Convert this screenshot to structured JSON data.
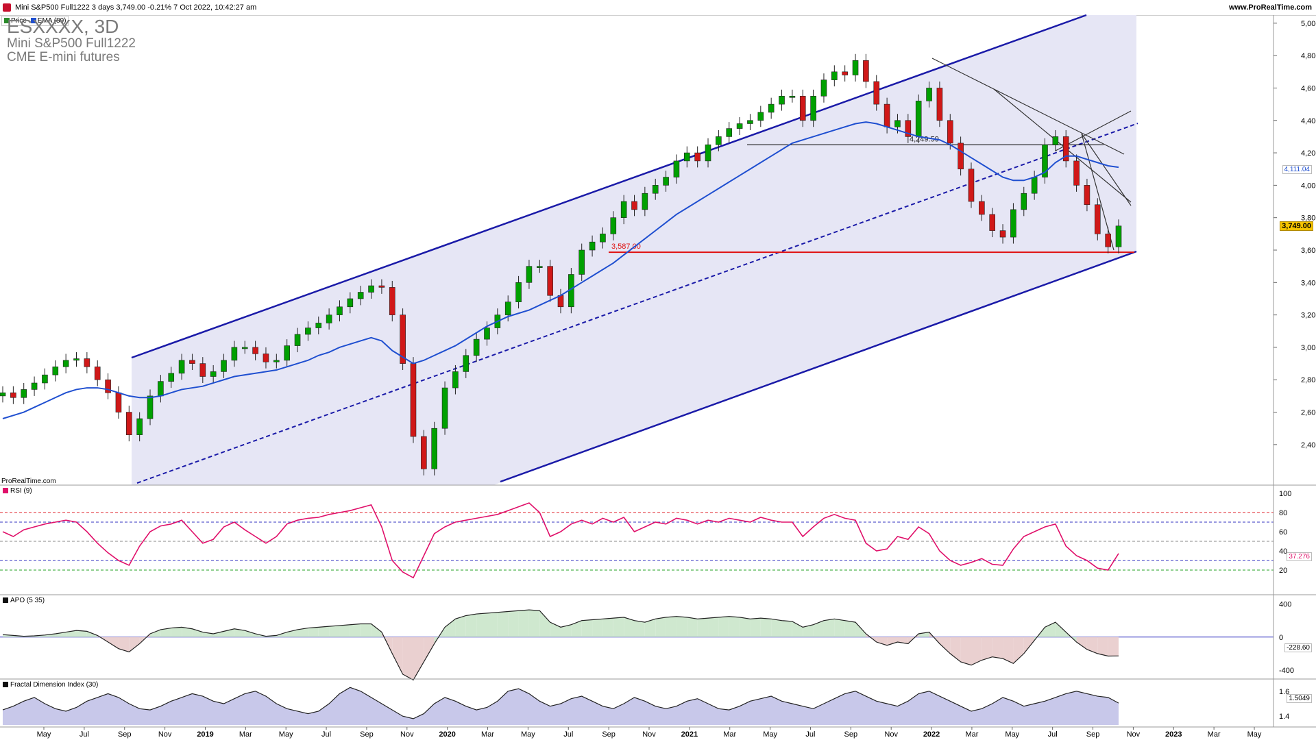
{
  "header": {
    "title": "Mini S&P500 Full1222 3 days 3,749.00 -0.21% 7 Oct 2022, 10:42:27 am",
    "site": "www.ProRealTime.com"
  },
  "legend": {
    "price_label": "Price",
    "ema_label": "EMA (89)"
  },
  "symbol": {
    "code": "ESXXXX, 3D",
    "name": "Mini S&P500 Full1222",
    "exchange": "CME E-mini futures"
  },
  "watermark": "ProRealTime.com",
  "colors": {
    "up": "#00a000",
    "down": "#d01818",
    "ema": "#1f4fd0",
    "channel": "#1a1aa8",
    "channel_fill": "#e6e6f5",
    "support": "#e01010",
    "rsi": "#e0106a",
    "apo_pos": "#cfe8cf",
    "apo_neg": "#ead0d0"
  },
  "chart_data": [
    {
      "type": "line",
      "title": "Mini S&P500 Full1222",
      "y_axis": {
        "range": [
          2150,
          5050
        ],
        "ticks": [
          "2,400",
          "2,600",
          "2,800",
          "3,000",
          "3,200",
          "3,400",
          "3,600",
          "3,800",
          "4,000",
          "4,200",
          "4,400",
          "4,600",
          "4,800",
          "5,000"
        ]
      },
      "x_axis": {
        "ticks": [
          "May",
          "Jul",
          "Sep",
          "Nov",
          "2019",
          "Mar",
          "May",
          "Jul",
          "Sep",
          "Nov",
          "2020",
          "Mar",
          "May",
          "Jul",
          "Sep",
          "Nov",
          "2021",
          "Mar",
          "May",
          "Jul",
          "Sep",
          "Nov",
          "2022",
          "Mar",
          "May",
          "Jul",
          "Sep",
          "Nov",
          "2023",
          "Mar",
          "May"
        ]
      },
      "series": [
        {
          "name": "Price",
          "values": [
            2720,
            2690,
            2740,
            2780,
            2830,
            2880,
            2920,
            2930,
            2880,
            2800,
            2720,
            2600,
            2460,
            2560,
            2700,
            2790,
            2840,
            2920,
            2900,
            2820,
            2850,
            2920,
            3000,
            3000,
            2960,
            2910,
            2920,
            3010,
            3080,
            3120,
            3150,
            3200,
            3250,
            3300,
            3340,
            3380,
            3370,
            3200,
            2900,
            2450,
            2250,
            2500,
            2750,
            2850,
            2950,
            3050,
            3120,
            3200,
            3280,
            3400,
            3500,
            3500,
            3320,
            3250,
            3450,
            3600,
            3650,
            3700,
            3800,
            3900,
            3850,
            3950,
            4000,
            4050,
            4150,
            4200,
            4150,
            4250,
            4300,
            4350,
            4380,
            4400,
            4450,
            4500,
            4550,
            4550,
            4400,
            4550,
            4650,
            4700,
            4680,
            4770,
            4640,
            4500,
            4360,
            4400,
            4300,
            4520,
            4600,
            4400,
            4260,
            4100,
            3900,
            3820,
            3720,
            3680,
            3850,
            3950,
            4050,
            4250,
            4300,
            4150,
            4000,
            3880,
            3700,
            3620,
            3749
          ]
        },
        {
          "name": "EMA (89)",
          "values": [
            2560,
            2580,
            2600,
            2630,
            2660,
            2690,
            2720,
            2740,
            2750,
            2750,
            2740,
            2720,
            2700,
            2690,
            2690,
            2700,
            2720,
            2740,
            2750,
            2760,
            2780,
            2800,
            2820,
            2830,
            2840,
            2850,
            2860,
            2880,
            2900,
            2920,
            2950,
            2970,
            3000,
            3020,
            3040,
            3060,
            3040,
            2980,
            2940,
            2900,
            2920,
            2950,
            2980,
            3010,
            3050,
            3090,
            3130,
            3160,
            3190,
            3210,
            3230,
            3260,
            3290,
            3320,
            3360,
            3400,
            3440,
            3480,
            3520,
            3570,
            3620,
            3670,
            3720,
            3770,
            3820,
            3860,
            3900,
            3940,
            3980,
            4020,
            4060,
            4100,
            4140,
            4180,
            4220,
            4260,
            4280,
            4300,
            4320,
            4340,
            4360,
            4380,
            4390,
            4380,
            4360,
            4340,
            4320,
            4300,
            4290,
            4280,
            4250,
            4210,
            4170,
            4130,
            4090,
            4050,
            4030,
            4030,
            4050,
            4080,
            4140,
            4180,
            4180,
            4160,
            4140,
            4120,
            4111
          ]
        }
      ],
      "annotations": [
        "3,587.00",
        "4,249.59"
      ],
      "last_price": "3,749.00",
      "ema_last": "4,111.04"
    },
    {
      "type": "line",
      "title": "RSI (9)",
      "y_axis": {
        "range": [
          0,
          100
        ],
        "ticks": [
          "20",
          "40",
          "60",
          "80",
          "100"
        ]
      },
      "series": [
        {
          "name": "RSI (9)",
          "values": [
            60,
            55,
            62,
            65,
            68,
            70,
            72,
            70,
            60,
            48,
            38,
            30,
            25,
            45,
            60,
            66,
            68,
            72,
            60,
            48,
            52,
            65,
            70,
            62,
            55,
            48,
            55,
            68,
            72,
            74,
            75,
            78,
            80,
            82,
            85,
            88,
            65,
            30,
            18,
            12,
            35,
            58,
            65,
            70,
            72,
            74,
            76,
            78,
            82,
            86,
            90,
            80,
            55,
            60,
            68,
            72,
            68,
            74,
            70,
            75,
            60,
            65,
            70,
            68,
            74,
            72,
            68,
            72,
            70,
            74,
            72,
            70,
            75,
            72,
            70,
            70,
            55,
            65,
            74,
            78,
            74,
            72,
            48,
            40,
            42,
            55,
            52,
            65,
            58,
            40,
            30,
            25,
            28,
            32,
            26,
            25,
            42,
            55,
            60,
            65,
            68,
            45,
            35,
            30,
            22,
            20,
            37.276
          ]
        }
      ],
      "levels": [
        80,
        70,
        50,
        30,
        20
      ],
      "last_value": "37.276"
    },
    {
      "type": "area",
      "title": "APO (5 35)",
      "y_axis": {
        "range": [
          -500,
          480
        ],
        "ticks": [
          "400",
          "0",
          "-400"
        ]
      },
      "series": [
        {
          "name": "APO (5 35)",
          "values": [
            30,
            20,
            10,
            15,
            25,
            40,
            60,
            80,
            70,
            20,
            -60,
            -140,
            -180,
            -80,
            40,
            90,
            110,
            120,
            100,
            60,
            40,
            70,
            100,
            80,
            40,
            10,
            20,
            60,
            90,
            110,
            120,
            130,
            140,
            150,
            160,
            160,
            60,
            -200,
            -450,
            -520,
            -300,
            -80,
            120,
            220,
            260,
            280,
            290,
            300,
            310,
            320,
            330,
            320,
            180,
            120,
            150,
            200,
            210,
            220,
            230,
            240,
            200,
            180,
            220,
            240,
            250,
            240,
            220,
            230,
            240,
            250,
            240,
            220,
            230,
            220,
            200,
            190,
            120,
            150,
            200,
            220,
            200,
            180,
            40,
            -60,
            -100,
            -60,
            -80,
            40,
            60,
            -80,
            -200,
            -300,
            -340,
            -280,
            -240,
            -260,
            -320,
            -200,
            -40,
            120,
            180,
            60,
            -60,
            -150,
            -200,
            -230,
            -228.6
          ]
        }
      ],
      "last_value": "-228.60"
    },
    {
      "type": "area",
      "title": "Fractal Dimension Index (30)",
      "y_axis": {
        "range": [
          1.33,
          1.67
        ],
        "ticks": [
          "1.6",
          "1.4"
        ]
      },
      "series": [
        {
          "name": "Fractal Dimension Index (30)",
          "values": [
            1.45,
            1.48,
            1.52,
            1.55,
            1.5,
            1.46,
            1.44,
            1.47,
            1.52,
            1.55,
            1.58,
            1.55,
            1.5,
            1.46,
            1.45,
            1.48,
            1.52,
            1.55,
            1.58,
            1.56,
            1.52,
            1.5,
            1.54,
            1.58,
            1.6,
            1.56,
            1.5,
            1.46,
            1.44,
            1.42,
            1.44,
            1.5,
            1.58,
            1.63,
            1.6,
            1.55,
            1.5,
            1.45,
            1.4,
            1.38,
            1.42,
            1.5,
            1.55,
            1.52,
            1.48,
            1.45,
            1.47,
            1.52,
            1.6,
            1.62,
            1.58,
            1.52,
            1.48,
            1.5,
            1.54,
            1.56,
            1.52,
            1.48,
            1.46,
            1.5,
            1.55,
            1.52,
            1.48,
            1.46,
            1.48,
            1.52,
            1.54,
            1.5,
            1.46,
            1.45,
            1.48,
            1.52,
            1.54,
            1.56,
            1.52,
            1.5,
            1.48,
            1.46,
            1.5,
            1.54,
            1.58,
            1.6,
            1.56,
            1.52,
            1.5,
            1.48,
            1.52,
            1.58,
            1.6,
            1.56,
            1.52,
            1.48,
            1.44,
            1.46,
            1.5,
            1.55,
            1.52,
            1.48,
            1.5,
            1.52,
            1.55,
            1.58,
            1.6,
            1.58,
            1.56,
            1.55,
            1.5049
          ]
        }
      ],
      "last_value": "1.5049"
    }
  ]
}
